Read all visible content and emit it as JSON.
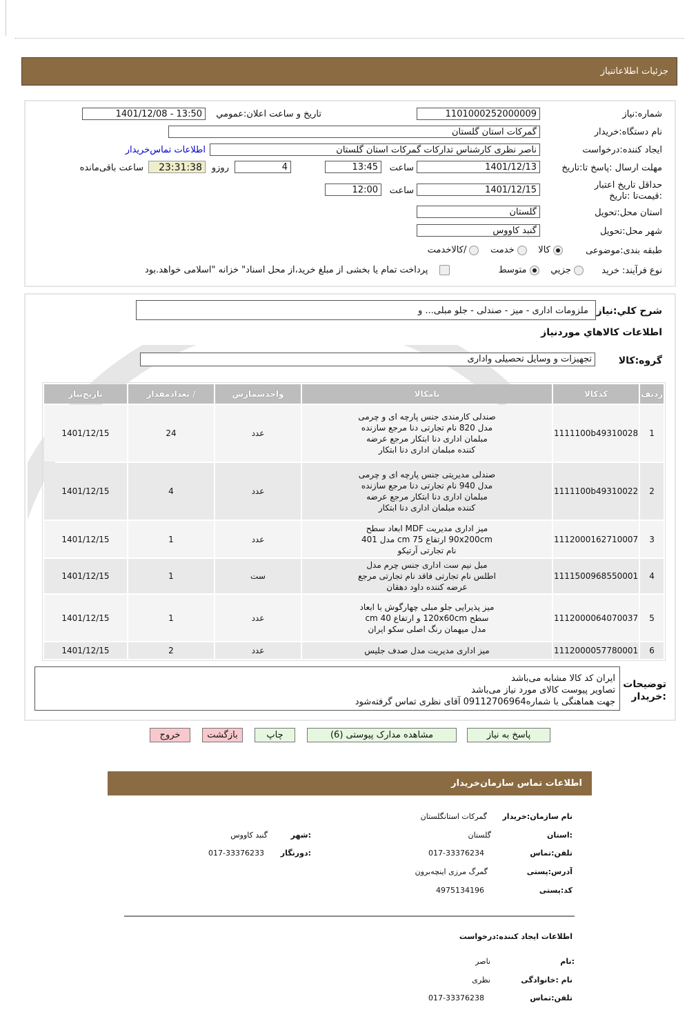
{
  "header": {
    "title": "جزئیات   اطلاعاتنیاز"
  },
  "colors": {
    "header_bg": "#8b6b42",
    "timer_bg": "#eeeecc",
    "green_button": "#e6f7e0",
    "pink_button": "#f8c8cc",
    "link": "#0000cc"
  },
  "form": {
    "need_number_label": "شماره:نیاز",
    "need_number": "1101000252000009",
    "announce_label": "تاریخ و ساعت اعلان:عمومي",
    "announce_value": "1401/12/08 - 13:50",
    "buyer_org_label": "نام دستگاه:خریدار",
    "buyer_org": "گمرکات استان گلستان",
    "creator_label": "ایجاد کننده:درخواست",
    "creator": "ناصر نظری کارشناس تدارکات گمرکات استان گلستان",
    "buyer_contact_link": "اطلاعات تماس‌خریدار",
    "deadline_label": "مهلت ارسال :پاسخ تا:تاریخ",
    "deadline_date": "1401/12/13",
    "time_label": "ساعت",
    "deadline_time": "13:45",
    "days": "4",
    "days_label": "روزو",
    "remaining": "23:31:38",
    "remaining_label": "ساعت باقی‌مانده",
    "validity_label": "حداقل تاریخ اعتبار :قیمت‌تا :تاریخ",
    "validity_date": "1401/12/15",
    "validity_time": "12:00",
    "province_label": "استان محل:تحویل",
    "province": "گلستان",
    "city_label": "شهر محل:تحویل",
    "city": "گنبد کاووس",
    "category_label": "طبقه بندی:موضوعی",
    "category_options": [
      "کالا",
      "خدمت",
      "/کالاخدمت"
    ],
    "category_selected": "کالا",
    "process_label": "نوع فرآیند: خرید",
    "process_options": [
      "جزیي",
      "متوسط"
    ],
    "process_selected": "متوسط",
    "payment_note": "پرداخت تمام یا بخشی از مبلغ خرید،از محل اسناد\" خزانه \"اسلامی خواهد.بود",
    "payment_checked": false
  },
  "summary": {
    "label": "شرح کلي:نیاز",
    "value": "ملزومات اداری - میز - صندلی - جلو مبلی... و",
    "goods_heading": "اطلاعات کالاهاي موردنیاز",
    "group_label": "گروه:کالا",
    "group_value": "تجهیزات و وسایل تحصیلی واداری"
  },
  "table": {
    "headers": [
      "ردیف",
      "کدکالا",
      "نامکالا",
      "واحدشمارش",
      "/ تعدادمقدار",
      "تاریخ‌نیاز"
    ],
    "rows": [
      {
        "n": "1",
        "code": "1111100b49310028",
        "name": "صندلی کارمندی جنس پارچه ای و چرمی مدل 820 نام تجارتی دنا مرجع سازنده مبلمان اداری دنا ابتکار مرجع عرضه کننده مبلمان اداری دنا ابتکار",
        "unit": "عدد",
        "qty": "24",
        "date": "1401/12/15"
      },
      {
        "n": "2",
        "code": "1111100b49310022",
        "name": "صندلی مدیریتی جنس پارچه ای و چرمی مدل 940 نام تجارتی دنا مرجع سازنده مبلمان اداری دنا ابتکار مرجع عرضه کننده مبلمان اداری دنا ابتکار",
        "unit": "عدد",
        "qty": "4",
        "date": "1401/12/15"
      },
      {
        "n": "3",
        "code": "1112000162710007",
        "name": "میز اداری مدیریت MDF ابعاد سطح 90x200cm ارتفاع 75 cm مدل 401 نام تجارتی آرتیکو",
        "unit": "عدد",
        "qty": "1",
        "date": "1401/12/15"
      },
      {
        "n": "4",
        "code": "1111500968550001",
        "name": "مبل نیم ست اداری جنس چرم مدل اطلس نام تجارتی فاقد نام تجارتی مرجع عرضه کننده داود دهقان",
        "unit": "ست",
        "qty": "1",
        "date": "1401/12/15"
      },
      {
        "n": "5",
        "code": "1112000064070037",
        "name": "میز پذیرایی جلو مبلی چهارگوش با ابعاد سطح 120x60cm و ارتفاع 40 cm مدل میهمان رنگ اصلی سکو ایران",
        "unit": "عدد",
        "qty": "1",
        "date": "1401/12/15"
      },
      {
        "n": "6",
        "code": "1112000057780001",
        "name": "میز اداری مدیریت مدل صدف جلیس",
        "unit": "عدد",
        "qty": "2",
        "date": "1401/12/15"
      }
    ]
  },
  "notes": {
    "label": "توضیحات :خریدار",
    "lines": [
      "ایران کد کالا مشابه می‌باشد",
      "تصاویر پیوست کالای مورد نیاز می‌باشد",
      "جهت هماهنگی با شماره09112706964 آقای نظری تماس گرفته‌شود"
    ]
  },
  "buttons": {
    "reply": "پاسخ به نیاز",
    "attachments": "مشاهده مدارک پیوستی (6)",
    "print": "چاپ",
    "back": "بازگشت",
    "exit": "خروج"
  },
  "contact": {
    "title": "اطلاعات  تماس سازمان‌خریدار",
    "org_label": "نام سازمان:خریدار",
    "org": "گمرکات استانگلستان",
    "province_label": ":استان",
    "province": "گلستان",
    "city_label": ":شهر",
    "city": "گنبد کاووس",
    "phone_label": "تلفن:تماس",
    "phone": "017-33376234",
    "fax_label": ":دورنگار",
    "fax": "017-33376233",
    "address_label": "آدرس:پستی",
    "address": "گمرگ مرزی اینچه‌برون",
    "postal_label": "کد:پستی",
    "postal": "4975134196",
    "creator_heading": "اطلاعات  ایجاد  کننده:درخواست",
    "name_label": ":نام",
    "name": "ناصر",
    "family_label": "نام :خانوادگی",
    "family": "نظری",
    "creator_phone_label": "تلفن:تماس",
    "creator_phone": "017-33376238"
  }
}
